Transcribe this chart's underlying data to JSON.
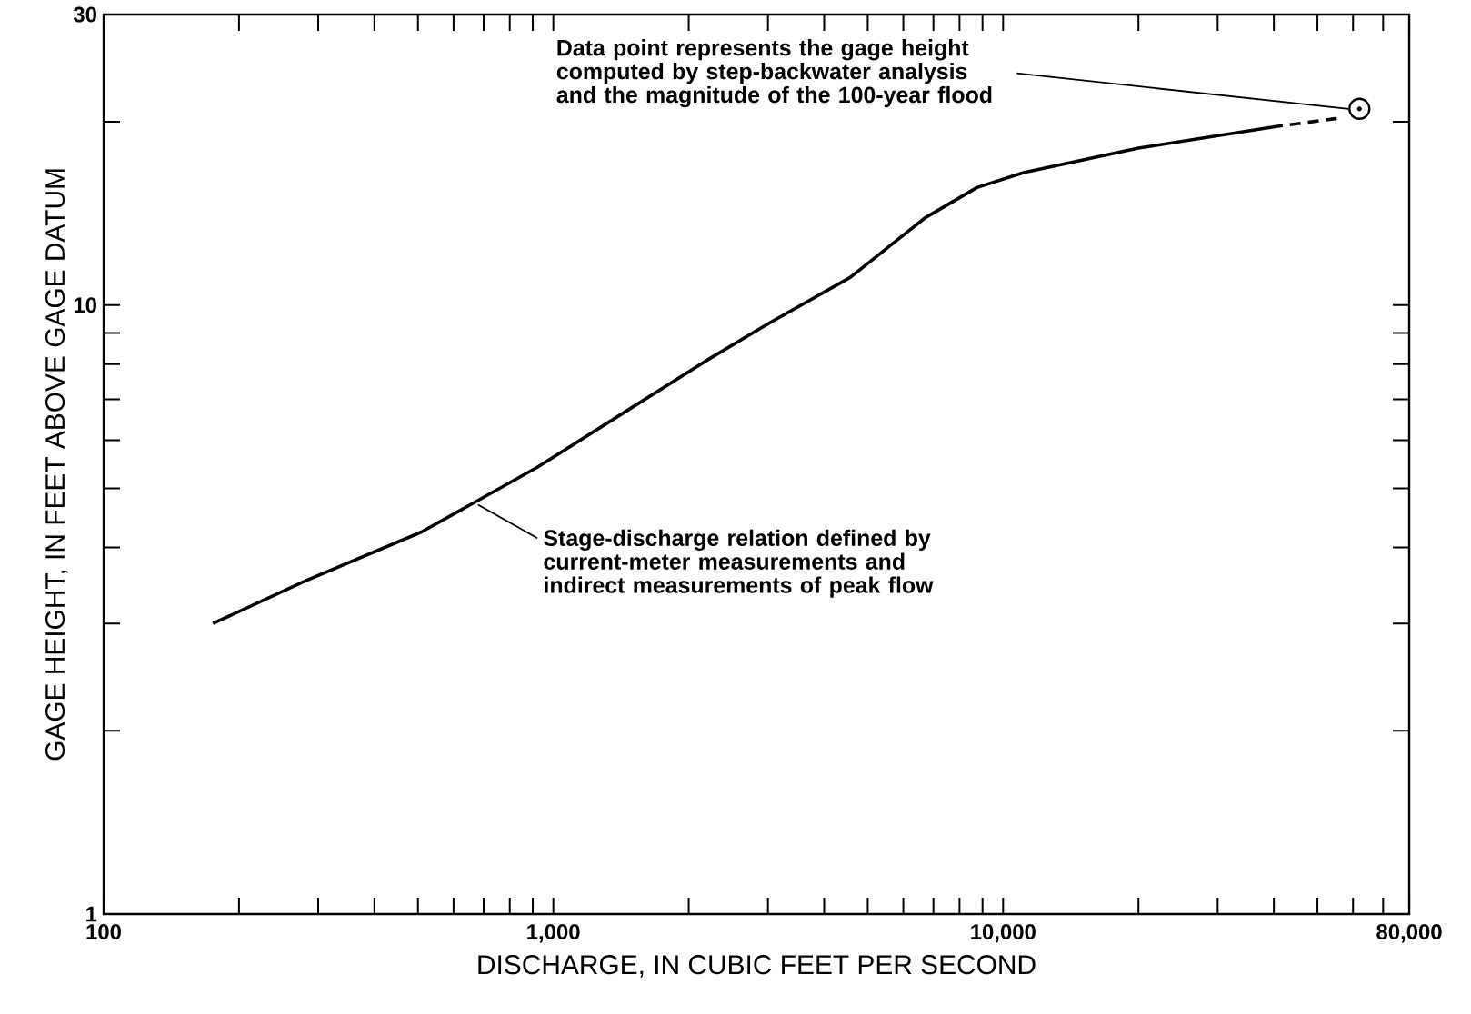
{
  "chart_data": {
    "type": "line",
    "xlabel": "DISCHARGE, IN CUBIC FEET PER SECOND",
    "ylabel": "GAGE HEIGHT, IN FEET ABOVE GAGE DATUM",
    "log": "xy",
    "xlim": [
      100,
      80000
    ],
    "ylim": [
      1,
      30
    ],
    "xticks": [
      {
        "value": 100,
        "label": "100"
      },
      {
        "value": 1000,
        "label": "1,000"
      },
      {
        "value": 10000,
        "label": "10,000"
      },
      {
        "value": 80000,
        "label": "80,000"
      }
    ],
    "yticks": [
      1,
      10,
      30
    ],
    "series": [
      {
        "color": "#000000",
        "line_style": "solid",
        "x": [
          175,
          280,
          509,
          923,
          1440,
          2240,
          3010,
          4570,
          6700,
          8750,
          11100,
          20000,
          39600
        ],
        "values": [
          3.0,
          3.52,
          4.24,
          5.42,
          6.67,
          8.19,
          9.33,
          11.1,
          13.9,
          15.6,
          16.5,
          18.1,
          19.6
        ]
      },
      {
        "color": "#000000",
        "line_style": "dashed",
        "x": [
          39600,
          56600
        ],
        "values": [
          19.6,
          20.3
        ]
      },
      {
        "type": "scatter",
        "color": "#000000",
        "marker": "circle",
        "x": [
          62000
        ],
        "values": [
          21
        ]
      }
    ],
    "annotations": [
      {
        "text": "Data point represents the gage height computed by step-backwater analysis and the magnitude of the 100-year flood",
        "x": 62000,
        "y": 21
      },
      {
        "text": "Stage-discharge relation defined by current-meter measurements and indirect measurements of peak flow",
        "x": 680,
        "y": 4.7
      }
    ]
  }
}
